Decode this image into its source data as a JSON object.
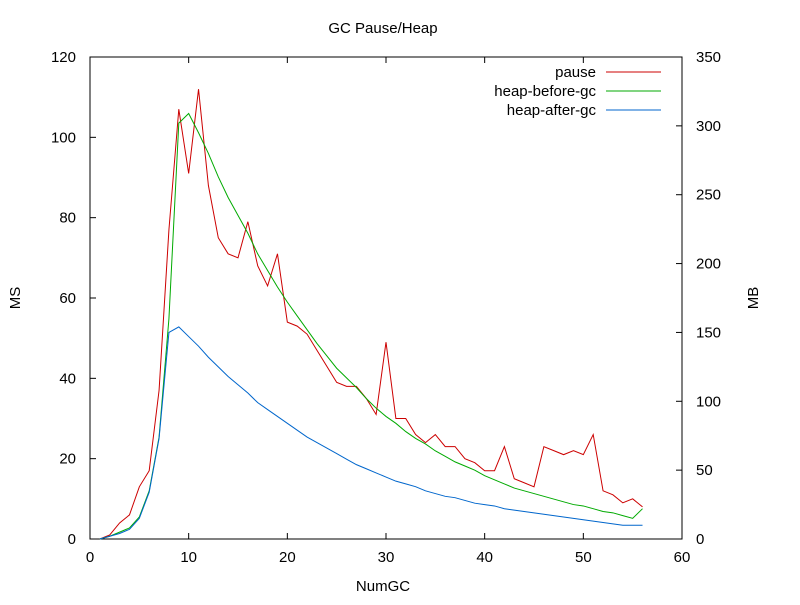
{
  "chart_data": {
    "type": "line",
    "title": "GC Pause/Heap",
    "xlabel": "NumGC",
    "ylabel": "MS",
    "y2label": "MB",
    "xlim": [
      0,
      60
    ],
    "ylim": [
      0,
      120
    ],
    "y2lim": [
      0,
      350
    ],
    "xticks": [
      0,
      10,
      20,
      30,
      40,
      50,
      60
    ],
    "yticks": [
      0,
      20,
      40,
      60,
      80,
      100,
      120
    ],
    "y2ticks": [
      0,
      50,
      100,
      150,
      200,
      250,
      300,
      350
    ],
    "grid": false,
    "legend_position": "top-right",
    "x": [
      1,
      2,
      3,
      4,
      5,
      6,
      7,
      8,
      9,
      10,
      11,
      12,
      13,
      14,
      15,
      16,
      17,
      18,
      19,
      20,
      21,
      22,
      23,
      24,
      25,
      26,
      27,
      28,
      29,
      30,
      31,
      32,
      33,
      34,
      35,
      36,
      37,
      38,
      39,
      40,
      41,
      42,
      43,
      44,
      45,
      46,
      47,
      48,
      49,
      50,
      51,
      52,
      53,
      54,
      55,
      56
    ],
    "series": [
      {
        "name": "pause",
        "axis": "left",
        "color": "#cc0000",
        "values": [
          0,
          1,
          4,
          6,
          13,
          17,
          37,
          77,
          107,
          91,
          112,
          88,
          75,
          71,
          70,
          79,
          68,
          63,
          71,
          54,
          53,
          51,
          47,
          43,
          39,
          38,
          38,
          35,
          31,
          49,
          30,
          30,
          26,
          24,
          26,
          23,
          23,
          20,
          19,
          17,
          17,
          23,
          15,
          14,
          13,
          23,
          22,
          21,
          22,
          21,
          26,
          12,
          11,
          9,
          10,
          8
        ]
      },
      {
        "name": "heap-before-gc",
        "axis": "right",
        "color": "#00aa00",
        "values": [
          0,
          2,
          5,
          8,
          16,
          35,
          74,
          160,
          302,
          309,
          295,
          280,
          263,
          248,
          235,
          222,
          207,
          195,
          183,
          172,
          162,
          152,
          142,
          133,
          124,
          117,
          110,
          102,
          95,
          89,
          84,
          78,
          73,
          69,
          64,
          60,
          56,
          53,
          50,
          46,
          43,
          40,
          37,
          35,
          33,
          31,
          29,
          27,
          25,
          24,
          22,
          20,
          19,
          17,
          15,
          22
        ]
      },
      {
        "name": "heap-after-gc",
        "axis": "right",
        "color": "#0066cc",
        "values": [
          0,
          2,
          4,
          7,
          15,
          34,
          73,
          150,
          154,
          147,
          140,
          132,
          125,
          118,
          112,
          106,
          99,
          94,
          89,
          84,
          79,
          74,
          70,
          66,
          62,
          58,
          54,
          51,
          48,
          45,
          42,
          40,
          38,
          35,
          33,
          31,
          30,
          28,
          26,
          25,
          24,
          22,
          21,
          20,
          19,
          18,
          17,
          16,
          15,
          14,
          13,
          12,
          11,
          10,
          10,
          10
        ]
      }
    ]
  }
}
